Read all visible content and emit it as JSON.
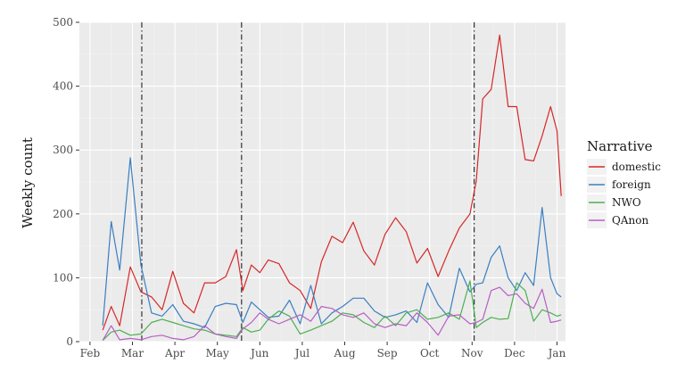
{
  "chart_data": {
    "type": "line",
    "ylabel": "Weekly count",
    "xlabel": "",
    "ylim": [
      0,
      500
    ],
    "yticks": [
      0,
      100,
      200,
      300,
      400,
      500
    ],
    "x_tick_labels": [
      "Feb",
      "Mar",
      "Apr",
      "May",
      "Jun",
      "Jul",
      "Aug",
      "Sep",
      "Oct",
      "Nov",
      "Dec",
      "Jan"
    ],
    "x_tick_positions": [
      0,
      1,
      2,
      3,
      4,
      5,
      6,
      7,
      8,
      9,
      10,
      11
    ],
    "x_range": [
      -0.25,
      11.2
    ],
    "vlines": [
      1.22,
      3.57,
      9.05
    ],
    "grid": true,
    "legend": {
      "title": "Narrative",
      "position": "right"
    },
    "x": [
      0.3,
      0.5,
      0.7,
      0.95,
      1.2,
      1.45,
      1.7,
      1.95,
      2.2,
      2.45,
      2.7,
      2.95,
      3.2,
      3.45,
      3.6,
      3.8,
      4.0,
      4.2,
      4.45,
      4.7,
      4.95,
      5.2,
      5.45,
      5.7,
      5.95,
      6.2,
      6.45,
      6.7,
      6.95,
      7.2,
      7.45,
      7.7,
      7.95,
      8.2,
      8.45,
      8.7,
      8.95,
      9.1,
      9.25,
      9.45,
      9.65,
      9.85,
      10.05,
      10.25,
      10.45,
      10.65,
      10.85,
      11.0,
      11.1
    ],
    "series": [
      {
        "name": "domestic",
        "color": "#d62728",
        "values": [
          18,
          55,
          25,
          117,
          78,
          70,
          50,
          110,
          60,
          45,
          92,
          92,
          102,
          144,
          80,
          120,
          108,
          128,
          122,
          92,
          80,
          52,
          125,
          165,
          155,
          187,
          142,
          120,
          168,
          194,
          172,
          123,
          146,
          102,
          142,
          178,
          200,
          252,
          380,
          395,
          480,
          368,
          368,
          285,
          283,
          322,
          368,
          330,
          228
        ]
      },
      {
        "name": "foreign",
        "color": "#3a7fc1",
        "values": [
          25,
          188,
          112,
          288,
          120,
          45,
          40,
          58,
          32,
          28,
          22,
          55,
          60,
          58,
          30,
          62,
          50,
          38,
          40,
          65,
          28,
          88,
          28,
          45,
          55,
          68,
          68,
          48,
          38,
          42,
          48,
          30,
          92,
          58,
          38,
          115,
          78,
          90,
          92,
          132,
          150,
          100,
          80,
          108,
          88,
          210,
          100,
          75,
          70
        ]
      },
      {
        "name": "NWO",
        "color": "#4caf50",
        "values": [
          2,
          15,
          18,
          10,
          12,
          30,
          35,
          30,
          25,
          20,
          18,
          12,
          10,
          8,
          22,
          15,
          18,
          35,
          48,
          40,
          12,
          18,
          25,
          32,
          45,
          42,
          30,
          22,
          40,
          25,
          45,
          50,
          35,
          38,
          45,
          35,
          95,
          22,
          30,
          38,
          35,
          36,
          92,
          80,
          32,
          50,
          45,
          40,
          42
        ]
      },
      {
        "name": "QAnon",
        "color": "#b75fc4",
        "values": [
          2,
          25,
          3,
          5,
          3,
          8,
          10,
          5,
          3,
          8,
          25,
          12,
          8,
          5,
          20,
          30,
          45,
          35,
          28,
          35,
          42,
          32,
          55,
          52,
          42,
          38,
          45,
          28,
          22,
          28,
          25,
          45,
          30,
          10,
          40,
          42,
          28,
          30,
          35,
          80,
          85,
          72,
          75,
          60,
          52,
          82,
          30,
          32,
          34
        ]
      }
    ]
  }
}
